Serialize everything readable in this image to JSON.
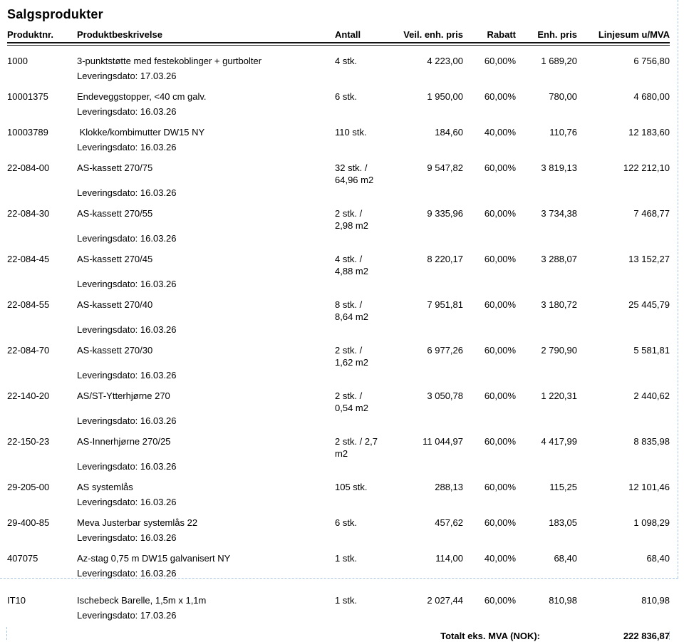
{
  "title": "Salgsprodukter",
  "table": {
    "columns": {
      "produktnr": "Produktnr.",
      "beskrivelse": "Produktbeskrivelse",
      "antall": "Antall",
      "veil": "Veil. enh. pris",
      "rabatt": "Rabatt",
      "enhpris": "Enh. pris",
      "linjesum": "Linjesum u/MVA"
    },
    "rows": [
      {
        "produktnr": "1000",
        "beskrivelse": "3-punktstøtte med festekoblinger + gurtbolter",
        "leveringsdato": "Leveringsdato: 17.03.26",
        "antall": "4 stk.",
        "veil": "4 223,00",
        "rabatt": "60,00%",
        "enhpris": "1 689,20",
        "linjesum": "6 756,80"
      },
      {
        "produktnr": "10001375",
        "beskrivelse": "Endeveggstopper, <40 cm galv.",
        "leveringsdato": "Leveringsdato: 16.03.26",
        "antall": "6 stk.",
        "veil": "1 950,00",
        "rabatt": "60,00%",
        "enhpris": "780,00",
        "linjesum": "4 680,00"
      },
      {
        "produktnr": "10003789",
        "beskrivelse": " Klokke/kombimutter DW15 NY",
        "leveringsdato": "Leveringsdato: 16.03.26",
        "antall": "110 stk.",
        "veil": "184,60",
        "rabatt": "40,00%",
        "enhpris": "110,76",
        "linjesum": "12 183,60"
      },
      {
        "produktnr": "22-084-00",
        "beskrivelse": "AS-kassett 270/75",
        "leveringsdato": "Leveringsdato: 16.03.26",
        "antall": "32 stk. /\n64,96 m2",
        "veil": "9 547,82",
        "rabatt": "60,00%",
        "enhpris": "3 819,13",
        "linjesum": "122 212,10"
      },
      {
        "produktnr": "22-084-30",
        "beskrivelse": "AS-kassett 270/55",
        "leveringsdato": "Leveringsdato: 16.03.26",
        "antall": "2 stk. /\n2,98 m2",
        "veil": "9 335,96",
        "rabatt": "60,00%",
        "enhpris": "3 734,38",
        "linjesum": "7 468,77"
      },
      {
        "produktnr": "22-084-45",
        "beskrivelse": "AS-kassett 270/45",
        "leveringsdato": "Leveringsdato: 16.03.26",
        "antall": "4 stk. /\n4,88 m2",
        "veil": "8 220,17",
        "rabatt": "60,00%",
        "enhpris": "3 288,07",
        "linjesum": "13 152,27"
      },
      {
        "produktnr": "22-084-55",
        "beskrivelse": "AS-kassett 270/40",
        "leveringsdato": "Leveringsdato: 16.03.26",
        "antall": "8 stk. /\n8,64 m2",
        "veil": "7 951,81",
        "rabatt": "60,00%",
        "enhpris": "3 180,72",
        "linjesum": "25 445,79"
      },
      {
        "produktnr": "22-084-70",
        "beskrivelse": "AS-kassett 270/30",
        "leveringsdato": "Leveringsdato: 16.03.26",
        "antall": "2 stk. /\n1,62 m2",
        "veil": "6 977,26",
        "rabatt": "60,00%",
        "enhpris": "2 790,90",
        "linjesum": "5 581,81"
      },
      {
        "produktnr": "22-140-20",
        "beskrivelse": "AS/ST-Ytterhjørne 270",
        "leveringsdato": "Leveringsdato: 16.03.26",
        "antall": "2 stk. /\n0,54 m2",
        "veil": "3 050,78",
        "rabatt": "60,00%",
        "enhpris": "1 220,31",
        "linjesum": "2 440,62"
      },
      {
        "produktnr": "22-150-23",
        "beskrivelse": "AS-Innerhjørne 270/25",
        "leveringsdato": "Leveringsdato: 16.03.26",
        "antall": "2 stk. / 2,7\nm2",
        "veil": "11 044,97",
        "rabatt": "60,00%",
        "enhpris": "4 417,99",
        "linjesum": "8 835,98"
      },
      {
        "produktnr": "29-205-00",
        "beskrivelse": "AS systemlås",
        "leveringsdato": "Leveringsdato: 16.03.26",
        "antall": "105 stk.",
        "veil": "288,13",
        "rabatt": "60,00%",
        "enhpris": "115,25",
        "linjesum": "12 101,46"
      },
      {
        "produktnr": "29-400-85",
        "beskrivelse": "Meva Justerbar systemlås 22",
        "leveringsdato": "Leveringsdato: 16.03.26",
        "antall": "6 stk.",
        "veil": "457,62",
        "rabatt": "60,00%",
        "enhpris": "183,05",
        "linjesum": "1 098,29"
      },
      {
        "produktnr": "407075",
        "beskrivelse": "Az-stag 0,75 m DW15 galvanisert NY",
        "leveringsdato": "Leveringsdato: 16.03.26",
        "antall": "1 stk.",
        "veil": "114,00",
        "rabatt": "40,00%",
        "enhpris": "68,40",
        "linjesum": "68,40"
      },
      {
        "produktnr": "IT10",
        "beskrivelse": "Ischebeck Barelle, 1,5m x 1,1m",
        "leveringsdato": "Leveringsdato: 17.03.26",
        "antall": "1 stk.",
        "veil": "2 027,44",
        "rabatt": "60,00%",
        "enhpris": "810,98",
        "linjesum": "810,98",
        "page_break_before": true
      }
    ],
    "total_label": "Totalt eks. MVA (NOK):",
    "total_value": "222 836,87"
  },
  "colors": {
    "text": "#000000",
    "page_break_dash": "#a9c6e4"
  }
}
